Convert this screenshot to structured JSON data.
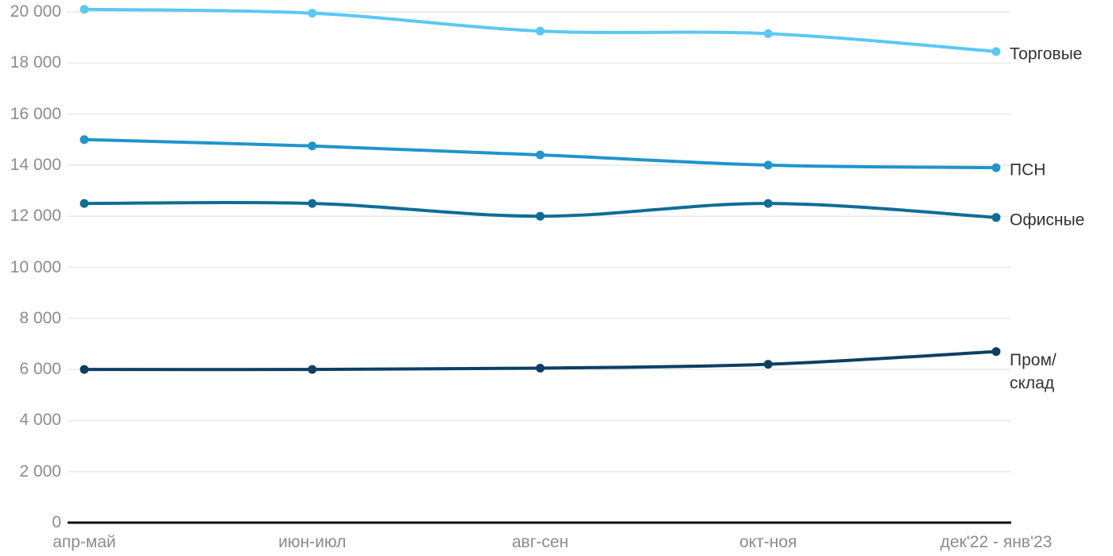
{
  "chart_data": {
    "type": "line",
    "categories": [
      "апр-май",
      "июн-июл",
      "авг-сен",
      "окт-ноя",
      "дек'22 - янв'23"
    ],
    "series": [
      {
        "name": "Торговые",
        "values": [
          20100,
          19950,
          19250,
          19150,
          18450
        ],
        "color": "#5BC8F2"
      },
      {
        "name": "ПСН",
        "values": [
          15000,
          14750,
          14400,
          14000,
          13900
        ],
        "color": "#2095CC"
      },
      {
        "name": "Офисные",
        "values": [
          12500,
          12500,
          12000,
          12500,
          11950
        ],
        "color": "#0E6D96"
      },
      {
        "name": "Пром/\nсклад",
        "values": [
          6000,
          6000,
          6050,
          6200,
          6700
        ],
        "color": "#0D3F63"
      }
    ],
    "ylim": [
      0,
      20000
    ],
    "ytick_step": 2000,
    "ytick_labels": [
      "0",
      "2 000",
      "4 000",
      "6 000",
      "8 000",
      "10 000",
      "12 000",
      "14 000",
      "16 000",
      "18 000",
      "20 000"
    ],
    "grid": true,
    "legend_position": "right-of-line-ends",
    "marker": "dot"
  },
  "colors": {
    "background": "#ffffff",
    "gridline": "#e9e9e9",
    "axis_line": "#111111",
    "tick_label": "#8c8c8c",
    "legend_label": "#333333"
  }
}
